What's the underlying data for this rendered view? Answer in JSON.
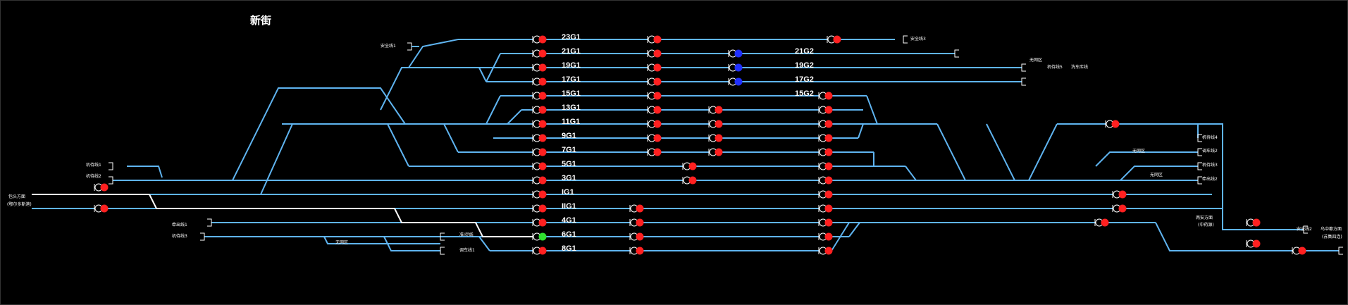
{
  "station": {
    "name": "新街"
  },
  "colors": {
    "background": "#000000",
    "track": "#5fb4f0",
    "route": "#ffffff",
    "signal_red": "#ff2020",
    "signal_green": "#30e030",
    "signal_blue": "#2030ff",
    "text": "#ffffff"
  },
  "track_labels": [
    {
      "id": "23G1",
      "label": "23G1"
    },
    {
      "id": "21G1",
      "label": "21G1"
    },
    {
      "id": "19G1",
      "label": "19G1"
    },
    {
      "id": "17G1",
      "label": "17G1"
    },
    {
      "id": "15G1",
      "label": "15G1"
    },
    {
      "id": "13G1",
      "label": "13G1"
    },
    {
      "id": "11G1",
      "label": "11G1"
    },
    {
      "id": "9G1",
      "label": "9G1"
    },
    {
      "id": "7G1",
      "label": "7G1"
    },
    {
      "id": "5G1",
      "label": "5G1"
    },
    {
      "id": "3G1",
      "label": "3G1"
    },
    {
      "id": "IG1",
      "label": "IG1"
    },
    {
      "id": "IIG1",
      "label": "IIG1"
    },
    {
      "id": "4G1",
      "label": "4G1"
    },
    {
      "id": "6G1",
      "label": "6G1"
    },
    {
      "id": "8G1",
      "label": "8G1"
    },
    {
      "id": "21G2",
      "label": "21G2"
    },
    {
      "id": "19G2",
      "label": "19G2"
    },
    {
      "id": "17G2",
      "label": "17G2"
    },
    {
      "id": "15G2",
      "label": "15G2"
    }
  ],
  "small_labels": [
    {
      "id": "safety_1",
      "label": "安全线1"
    },
    {
      "id": "safety_3",
      "label": "安全线3"
    },
    {
      "id": "mach_5",
      "label": "机待线5"
    },
    {
      "id": "wash",
      "label": "洗车库线"
    },
    {
      "id": "wuwang_1",
      "label": "无网区"
    },
    {
      "id": "mach_1",
      "label": "机待线1"
    },
    {
      "id": "mach_2",
      "label": "机待线2"
    },
    {
      "id": "baotou_dir",
      "label": "包头方面"
    },
    {
      "id": "baotou_sub",
      "label": "(鄂尔多斯港)"
    },
    {
      "id": "mach_4",
      "label": "机待线4"
    },
    {
      "id": "wuwang_2",
      "label": "无网区"
    },
    {
      "id": "dispatch_2",
      "label": "调车线2"
    },
    {
      "id": "mach_3",
      "label": "机待线3"
    },
    {
      "id": "wuwang_3",
      "label": "无网区"
    },
    {
      "id": "shunt_2",
      "label": "牵出线2"
    },
    {
      "id": "shunt_1",
      "label": "牵出线1"
    },
    {
      "id": "mach_w",
      "label": "机待线3"
    },
    {
      "id": "wuwang_4",
      "label": "无网区"
    },
    {
      "id": "zhunchu",
      "label": "准Ⅰ尽线"
    },
    {
      "id": "dispatch_1",
      "label": "调车线1"
    },
    {
      "id": "liangan_dir",
      "label": "两安方面"
    },
    {
      "id": "liangan_sub",
      "label": "(中药源)"
    },
    {
      "id": "safety_2",
      "label": "安全线2"
    },
    {
      "id": "east_dir",
      "label": "乌中都方面"
    },
    {
      "id": "east_sub",
      "label": "(苏集四连)"
    }
  ]
}
